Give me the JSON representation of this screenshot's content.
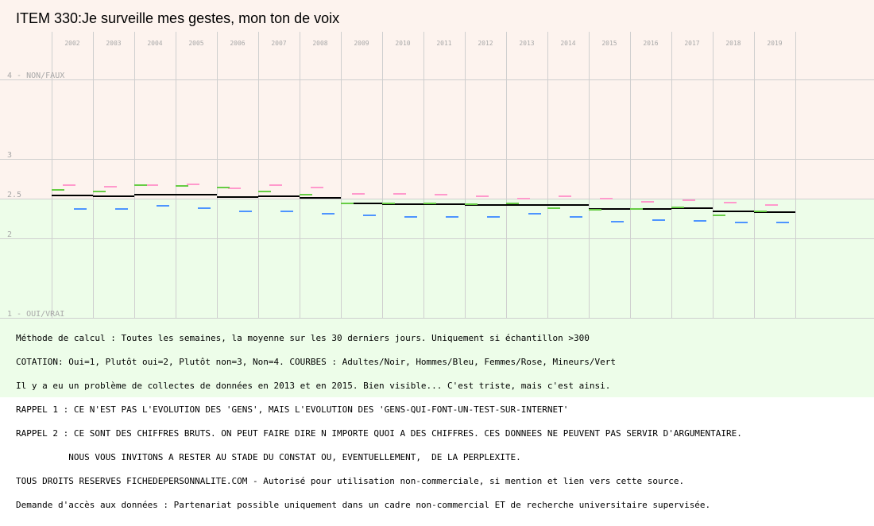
{
  "title": "ITEM 330:Je surveille mes gestes, mon ton de voix",
  "chart_data": {
    "type": "line",
    "title": "ITEM 330:Je surveille mes gestes, mon ton de voix",
    "categories": [
      "2002",
      "2003",
      "2004",
      "2005",
      "2006",
      "2007",
      "2008",
      "2009",
      "2010",
      "2011",
      "2012",
      "2013",
      "2014",
      "2015",
      "2016",
      "2017",
      "2018",
      "2019"
    ],
    "y_tick_labels": [
      {
        "value": 4,
        "label": "4 - NON/FAUX"
      },
      {
        "value": 3,
        "label": "3"
      },
      {
        "value": 2.5,
        "label": "2.5"
      },
      {
        "value": 2,
        "label": "2"
      },
      {
        "value": 1,
        "label": "1 - OUI/VRAI"
      }
    ],
    "ylim": [
      1,
      4
    ],
    "grid": true,
    "bands": [
      {
        "from": 2.5,
        "to": 4,
        "color": "#fdf3ee"
      },
      {
        "from": 1,
        "to": 2.5,
        "color": "#edfde9"
      }
    ],
    "series": [
      {
        "name": "Adultes",
        "color": "#000000",
        "values": [
          2.54,
          2.53,
          2.55,
          2.55,
          2.52,
          2.53,
          2.51,
          2.44,
          2.43,
          2.43,
          2.42,
          2.42,
          2.42,
          2.37,
          2.37,
          2.38,
          2.34,
          2.33
        ]
      },
      {
        "name": "Hommes",
        "color": "#4d94ff",
        "values": [
          2.37,
          2.37,
          2.41,
          2.38,
          2.34,
          2.34,
          2.31,
          2.29,
          2.27,
          2.27,
          2.27,
          2.31,
          2.27,
          2.21,
          2.23,
          2.22,
          2.2,
          2.2
        ]
      },
      {
        "name": "Femmes",
        "color": "#ff99cc",
        "values": [
          2.67,
          2.65,
          2.67,
          2.68,
          2.63,
          2.67,
          2.64,
          2.56,
          2.56,
          2.55,
          2.53,
          2.5,
          2.53,
          2.5,
          2.46,
          2.48,
          2.45,
          2.42
        ]
      },
      {
        "name": "Mineurs",
        "color": "#66cc44",
        "values": [
          2.61,
          2.59,
          2.67,
          2.66,
          2.64,
          2.59,
          2.55,
          2.44,
          2.44,
          2.44,
          2.43,
          2.44,
          2.38,
          2.36,
          2.37,
          2.39,
          2.29,
          2.34
        ]
      }
    ]
  },
  "notes": [
    "Méthode de calcul : Toutes les semaines, la moyenne sur les 30 derniers jours. Uniquement si échantillon >300",
    "COTATION: Oui=1, Plutôt oui=2, Plutôt non=3, Non=4. COURBES : Adultes/Noir, Hommes/Bleu, Femmes/Rose, Mineurs/Vert",
    "Il y a eu un problème de collectes de données en 2013 et en 2015. Bien visible... C'est triste, mais c'est ainsi.",
    "RAPPEL 1 : CE N'EST PAS L'EVOLUTION DES 'GENS', MAIS L'EVOLUTION DES 'GENS-QUI-FONT-UN-TEST-SUR-INTERNET'",
    "RAPPEL 2 : CE SONT DES CHIFFRES BRUTS. ON PEUT FAIRE DIRE N IMPORTE QUOI A DES CHIFFRES. CES DONNEES NE PEUVENT PAS SERVIR D'ARGUMENTAIRE.",
    "          NOUS VOUS INVITONS A RESTER AU STADE DU CONSTAT OU, EVENTUELLEMENT,  DE LA PERPLEXITE.",
    "TOUS DROITS RESERVES FICHEDEPERSONNALITE.COM - Autorisé pour utilisation non-commerciale, si mention et lien vers cette source.",
    "Demande d'accès aux données : Partenariat possible uniquement dans un cadre non-commercial ET de recherche universitaire supervisée."
  ]
}
